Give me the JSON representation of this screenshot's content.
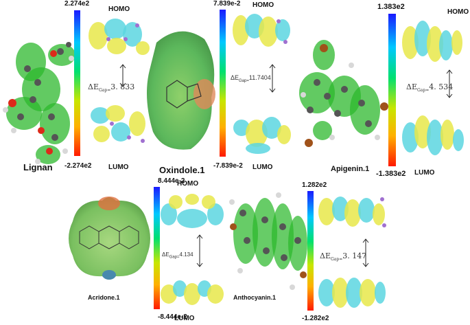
{
  "panels": {
    "lignan": {
      "name": "Lignan",
      "scale_max": "2.274e2",
      "scale_min": "-2.274e2",
      "homo": "HOMO",
      "lumo": "LUMO",
      "gap_value": "3. 833"
    },
    "oxindole": {
      "name": "Oxindole.1",
      "scale_max": "7.839e-2",
      "scale_min": "-7.839e-2",
      "homo": "HOMO",
      "lumo": "LUMO",
      "gap_value": "11.7404"
    },
    "apigenin": {
      "name": "Apigenin.1",
      "scale_max": "1.383e2",
      "scale_min": "-1.383e2",
      "homo": "HOMO",
      "lumo": "LUMO",
      "gap_value": "4. 534"
    },
    "acridone": {
      "name": "Acridone.1",
      "scale_max": "8.444e-2",
      "scale_min": "-8.444e-2",
      "homo": "HOMO",
      "lumo": "LUMO",
      "gap_value": "4.134"
    },
    "anthocyanin": {
      "name": "Anthocyanin.1",
      "scale_max": "1.282e2",
      "scale_min": "-1.282e2",
      "homo": "HOMO",
      "lumo": "LUMO",
      "gap_value": "3. 147"
    }
  },
  "gap_symbol": "ΔE",
  "gap_subscript": "Gap=",
  "colors": {
    "orbital_positive": "#e8e84a",
    "orbital_negative": "#5cd6e0",
    "isosurface_green": "#2db82d",
    "esp_surface": "#9ccf7a"
  }
}
